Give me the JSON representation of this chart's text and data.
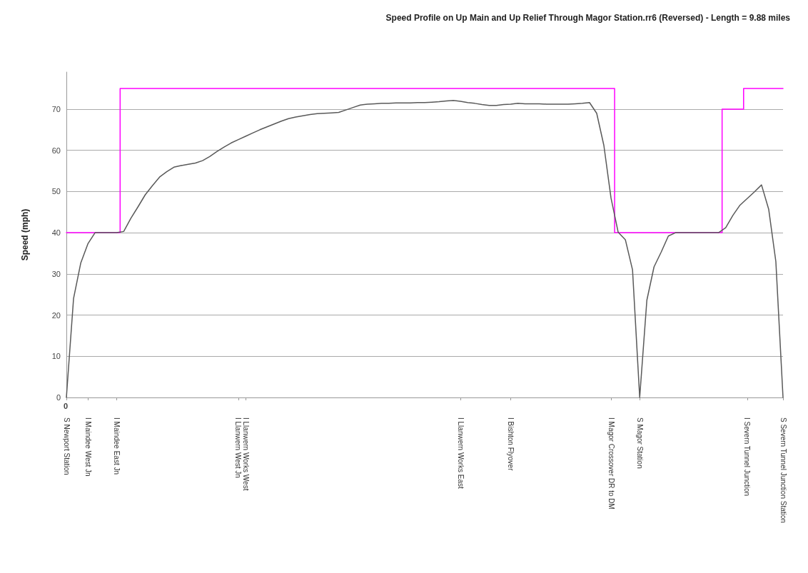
{
  "chart_data": {
    "type": "line",
    "title": "Speed Profile on Up Main and Up Relief Through Magor Station.rr6 (Reversed) - Length = 9.88 miles",
    "ylabel": "Speed (mph)",
    "annotations": [
      "0"
    ],
    "categories": [
      "S Newport Station",
      null,
      null,
      "I Maindee West Jn",
      null,
      null,
      null,
      "I Maindee East Jn",
      null,
      null,
      null,
      null,
      null,
      null,
      null,
      null,
      null,
      null,
      null,
      null,
      null,
      null,
      null,
      null,
      "I Llanwern West Jn",
      "I Llanwern Works West",
      null,
      null,
      null,
      null,
      null,
      null,
      null,
      null,
      null,
      null,
      null,
      null,
      null,
      null,
      null,
      null,
      null,
      null,
      null,
      null,
      null,
      null,
      null,
      null,
      null,
      null,
      null,
      null,
      null,
      "I Llanwern Works East",
      null,
      null,
      null,
      null,
      null,
      null,
      "I Bishton Flyover",
      null,
      null,
      null,
      null,
      null,
      null,
      null,
      null,
      null,
      null,
      null,
      null,
      null,
      "I Magor Crossover DR to DM",
      null,
      null,
      null,
      "S Magor Station",
      null,
      null,
      null,
      null,
      null,
      null,
      null,
      null,
      null,
      null,
      null,
      null,
      null,
      null,
      "I Severn Tunnel Junction",
      null,
      null,
      null,
      null,
      "S Severn Tunnel Junction Station"
    ],
    "ylim": [
      0,
      79
    ],
    "yticks": [
      0,
      10,
      20,
      30,
      40,
      50,
      60,
      70
    ],
    "grid": "y",
    "marker": "none",
    "line_style": "solid",
    "series": [
      {
        "type": "step",
        "color": "#ff00ff",
        "values": [
          40,
          40,
          40,
          40,
          40,
          40,
          40,
          40,
          75,
          75,
          75,
          75,
          75,
          75,
          75,
          75,
          75,
          75,
          75,
          75,
          75,
          75,
          75,
          75,
          75,
          75,
          75,
          75,
          75,
          75,
          75,
          75,
          75,
          75,
          75,
          75,
          75,
          75,
          75,
          75,
          75,
          75,
          75,
          75,
          75,
          75,
          75,
          75,
          75,
          75,
          75,
          75,
          75,
          75,
          75,
          75,
          75,
          75,
          75,
          75,
          75,
          75,
          75,
          75,
          75,
          75,
          75,
          75,
          75,
          75,
          75,
          75,
          75,
          75,
          75,
          75,
          75,
          40,
          40,
          40,
          40,
          40,
          40,
          40,
          40,
          40,
          40,
          40,
          40,
          40,
          40,
          40,
          70,
          70,
          70,
          75,
          75,
          75,
          75,
          75,
          75
        ]
      },
      {
        "color": "#595959",
        "values": [
          0,
          24,
          32.6,
          37.3,
          40,
          40,
          40,
          40,
          40.3,
          43.5,
          46.3,
          49.2,
          51.4,
          53.5,
          54.8,
          55.9,
          56.3,
          56.6,
          56.9,
          57.5,
          58.5,
          59.7,
          60.8,
          61.8,
          62.6,
          63.4,
          64.2,
          65,
          65.7,
          66.4,
          67.1,
          67.7,
          68.1,
          68.4,
          68.7,
          68.9,
          69,
          69.1,
          69.2,
          69.8,
          70.4,
          71,
          71.2,
          71.3,
          71.4,
          71.4,
          71.5,
          71.5,
          71.5,
          71.6,
          71.6,
          71.7,
          71.8,
          72,
          72.1,
          71.9,
          71.6,
          71.4,
          71.1,
          70.9,
          70.9,
          71.1,
          71.2,
          71.4,
          71.3,
          71.3,
          71.3,
          71.2,
          71.2,
          71.2,
          71.2,
          71.3,
          71.4,
          71.6,
          69,
          61.2,
          48.4,
          40.1,
          38.3,
          31,
          0,
          23.6,
          31.7,
          35.3,
          39.2,
          40,
          40,
          40,
          40,
          40,
          40,
          40,
          41.2,
          44.2,
          46.7,
          48.3,
          49.9,
          51.6,
          45.7,
          33,
          0
        ]
      }
    ]
  }
}
